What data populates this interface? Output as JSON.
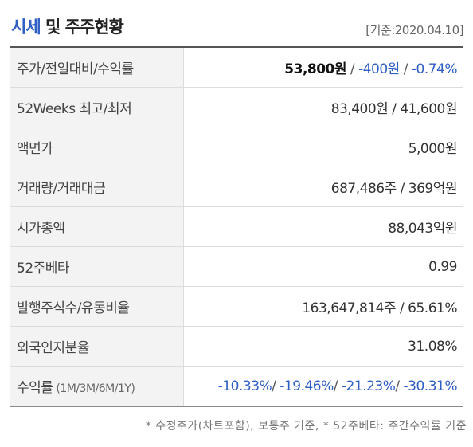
{
  "header": {
    "title_accent": "시세",
    "title_rest": " 및 주주현황",
    "basis_date": "[기준:2020.04.10]"
  },
  "rows": {
    "price": {
      "label": "주가/전일대비/수익률",
      "price": "53,800원",
      "change": "-400원",
      "rate": "-0.74%",
      "sep": " / "
    },
    "week52": {
      "label": "52Weeks 최고/최저",
      "value": "83,400원 / 41,600원"
    },
    "par": {
      "label": "액면가",
      "value": "5,000원"
    },
    "volume": {
      "label": "거래량/거래대금",
      "value": "687,486주 / 369억원"
    },
    "marketcap": {
      "label": "시가총액",
      "value": "88,043억원"
    },
    "beta": {
      "label": "52주베타",
      "value": "0.99"
    },
    "shares": {
      "label": "발행주식수/유동비율",
      "value": "163,647,814주 / 65.61%"
    },
    "foreign": {
      "label": "외국인지분율",
      "value": "31.08%"
    },
    "returns": {
      "label": "수익률",
      "label_sub": " (1M/3M/6M/1Y)",
      "r1m": "-10.33%",
      "r3m": "-19.46%",
      "r6m": "-21.23%",
      "r1y": "-30.31%",
      "sep": "/ "
    }
  },
  "footnote": "* 수정주가(차트포함), 보통주 기준, * 52주베타: 주간수익률 기준",
  "colors": {
    "accent": "#2f5ec4",
    "label_bg": "#f3f3f3",
    "negative": "#2f5ec4"
  }
}
